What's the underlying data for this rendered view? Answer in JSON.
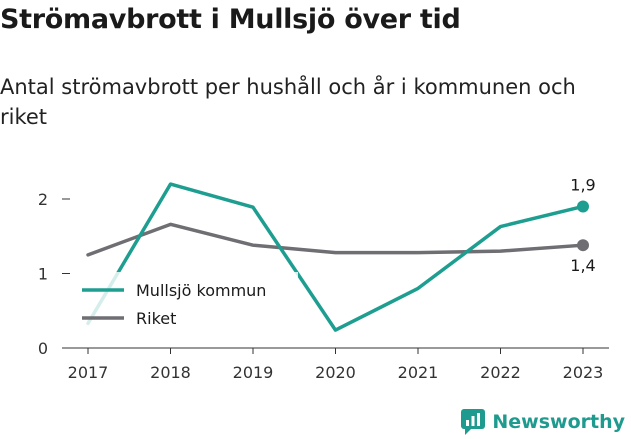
{
  "title": "Strömavbrott i Mullsjö över tid",
  "subtitle": "Antal strömavbrott per hushåll och år i kommunen och riket",
  "brand": {
    "name": "Newsworthy",
    "icon": "bar-chart-logo-icon"
  },
  "colors": {
    "mullsjo": "#1e9e90",
    "riket": "#6e6e73",
    "brand": "#1f9a8e"
  },
  "chart_data": {
    "type": "line",
    "x": [
      "2017",
      "2018",
      "2019",
      "2020",
      "2021",
      "2022",
      "2023"
    ],
    "series": [
      {
        "name": "Mullsjö kommun",
        "values": [
          0.33,
          2.2,
          1.89,
          0.24,
          0.8,
          1.63,
          1.9
        ]
      },
      {
        "name": "Riket",
        "values": [
          1.25,
          1.66,
          1.38,
          1.28,
          1.28,
          1.3,
          1.38
        ]
      }
    ],
    "end_labels": [
      "1,9",
      "1,4"
    ],
    "y_ticks": [
      "0",
      "1",
      "2"
    ],
    "ylim": [
      0,
      2.2
    ],
    "grid": false,
    "legend_position": "bottom-left"
  }
}
